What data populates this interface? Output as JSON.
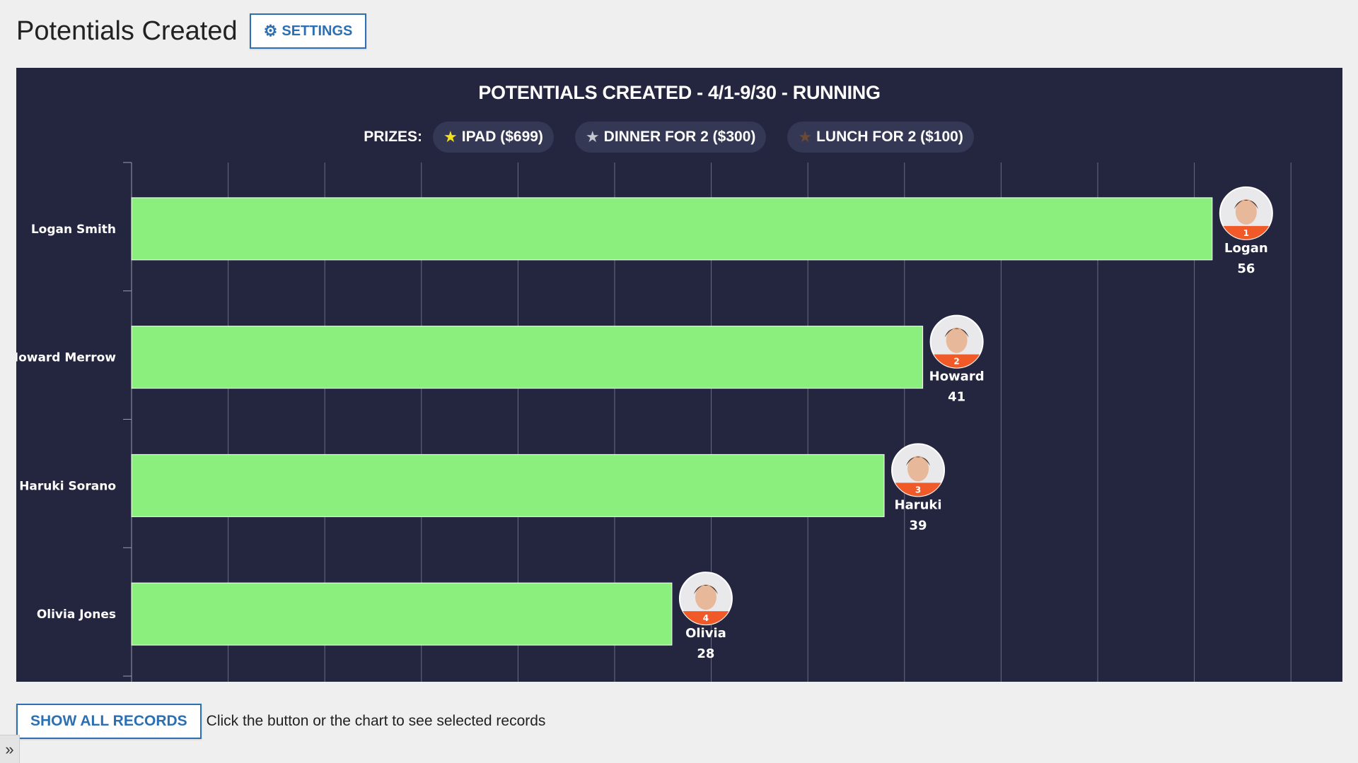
{
  "header": {
    "title": "Potentials Created",
    "settings_label": "SETTINGS",
    "settings_icon": "gear-icon"
  },
  "chart_data": {
    "type": "bar",
    "orientation": "horizontal",
    "title": "POTENTIALS CREATED - 4/1-9/30 - RUNNING",
    "categories": [
      "Logan Smith",
      "Howard Merrow",
      "Haruki Sorano",
      "Olivia Jones"
    ],
    "short_names": [
      "Logan",
      "Howard",
      "Haruki",
      "Olivia"
    ],
    "ranks": [
      "1",
      "2",
      "3",
      "4"
    ],
    "values": [
      56,
      41,
      39,
      28
    ],
    "xlim": [
      0,
      60
    ],
    "grid": true,
    "bar_color": "#8bef7e",
    "rank_badge_color": "#f05a28"
  },
  "prizes": {
    "label": "PRIZES:",
    "items": [
      {
        "label": "IPAD ($699)",
        "star_color": "#f5e11b"
      },
      {
        "label": "DINNER FOR 2 ($300)",
        "star_color": "#c3c5cf"
      },
      {
        "label": "LUNCH FOR 2 ($100)",
        "star_color": "#6b4a34"
      }
    ]
  },
  "footer": {
    "show_all_label": "SHOW ALL RECORDS",
    "hint": "Click the button or the chart to see selected records"
  },
  "sidebar_toggle": {
    "label": "»"
  },
  "colors": {
    "panel_bg": "#242640",
    "accent": "#2c6fb3",
    "page_bg": "#efefef"
  }
}
